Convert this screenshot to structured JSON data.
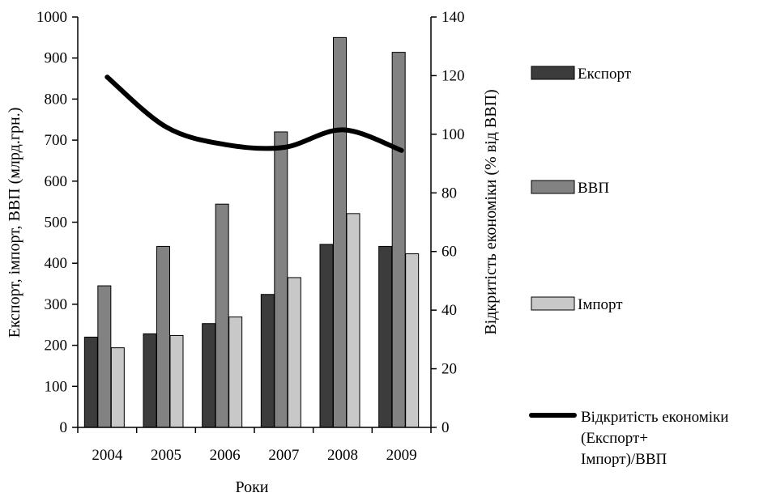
{
  "chart_data": {
    "type": "bar",
    "categories": [
      "2004",
      "2005",
      "2006",
      "2007",
      "2008",
      "2009"
    ],
    "series": [
      {
        "name": "Експорт",
        "values": [
          220,
          228,
          253,
          324,
          446,
          441
        ],
        "color": "#3c3c3c",
        "axis": "left"
      },
      {
        "name": "ВВП",
        "values": [
          345,
          441,
          544,
          720,
          950,
          914
        ],
        "color": "#828282",
        "axis": "left"
      },
      {
        "name": "Імпорт",
        "values": [
          194,
          224,
          269,
          365,
          521,
          423
        ],
        "color": "#c8c8c8",
        "axis": "left"
      }
    ],
    "line_series": {
      "name_lines": [
        "Відкритість економіки",
        "(Експорт+",
        "Імпорт)/ВВП"
      ],
      "values": [
        119.5,
        102.5,
        96.5,
        95.5,
        101.5,
        94.5
      ],
      "color": "#000000",
      "axis": "right"
    },
    "xlabel": "Роки",
    "ylabel_left": "Експорт, імпорт, ВВП (млрд.грн.)",
    "ylabel_right": "Відкритість економіки (% від ВВП)",
    "ylim_left": [
      0,
      1000
    ],
    "yticks_left": [
      0,
      100,
      200,
      300,
      400,
      500,
      600,
      700,
      800,
      900,
      1000
    ],
    "ylim_right": [
      0,
      140
    ],
    "yticks_right": [
      0,
      20,
      40,
      60,
      80,
      100,
      120,
      140
    ],
    "grid": false,
    "legend_position": "right"
  }
}
